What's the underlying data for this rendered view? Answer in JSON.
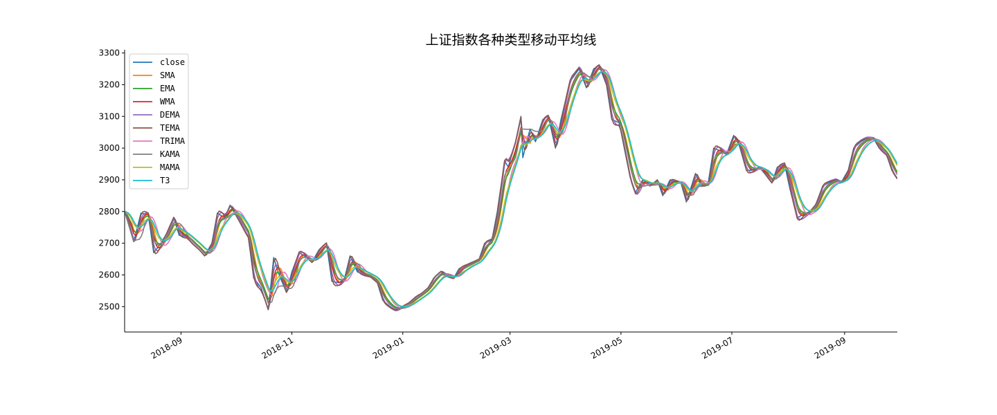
{
  "chart_data": {
    "type": "line",
    "title": "上证指数各种类型移动平均线",
    "xlabel": "",
    "ylabel": "",
    "x_range": [
      "2018-08-01",
      "2019-09-30"
    ],
    "ylim": [
      2420,
      3310
    ],
    "x_ticks": [
      "2018-09",
      "2018-11",
      "2019-01",
      "2019-03",
      "2019-05",
      "2019-07",
      "2019-09"
    ],
    "x_tick_dates": [
      "2018-09-01",
      "2018-11-01",
      "2019-01-01",
      "2019-03-01",
      "2019-05-01",
      "2019-07-01",
      "2019-09-01"
    ],
    "y_ticks": [
      2500,
      2600,
      2700,
      2800,
      2900,
      3000,
      3100,
      3200,
      3300
    ],
    "grid": false,
    "legend_position": "upper-left",
    "close_points": [
      [
        "2018-08-01",
        2800
      ],
      [
        "2018-08-06",
        2705
      ],
      [
        "2018-08-10",
        2795
      ],
      [
        "2018-08-14",
        2790
      ],
      [
        "2018-08-17",
        2670
      ],
      [
        "2018-08-21",
        2700
      ],
      [
        "2018-08-24",
        2730
      ],
      [
        "2018-08-28",
        2780
      ],
      [
        "2018-08-31",
        2725
      ],
      [
        "2018-09-04",
        2720
      ],
      [
        "2018-09-07",
        2700
      ],
      [
        "2018-09-11",
        2680
      ],
      [
        "2018-09-14",
        2660
      ],
      [
        "2018-09-18",
        2700
      ],
      [
        "2018-09-21",
        2795
      ],
      [
        "2018-09-25",
        2780
      ],
      [
        "2018-09-28",
        2820
      ],
      [
        "2018-10-08",
        2720
      ],
      [
        "2018-10-11",
        2590
      ],
      [
        "2018-10-15",
        2560
      ],
      [
        "2018-10-19",
        2490
      ],
      [
        "2018-10-22",
        2655
      ],
      [
        "2018-10-25",
        2600
      ],
      [
        "2018-10-29",
        2545
      ],
      [
        "2018-11-01",
        2610
      ],
      [
        "2018-11-05",
        2670
      ],
      [
        "2018-11-08",
        2660
      ],
      [
        "2018-11-12",
        2640
      ],
      [
        "2018-11-16",
        2680
      ],
      [
        "2018-11-20",
        2700
      ],
      [
        "2018-11-23",
        2580
      ],
      [
        "2018-11-27",
        2575
      ],
      [
        "2018-11-30",
        2590
      ],
      [
        "2018-12-03",
        2660
      ],
      [
        "2018-12-07",
        2610
      ],
      [
        "2018-12-11",
        2600
      ],
      [
        "2018-12-14",
        2595
      ],
      [
        "2018-12-18",
        2575
      ],
      [
        "2018-12-21",
        2520
      ],
      [
        "2018-12-25",
        2500
      ],
      [
        "2018-12-28",
        2490
      ],
      [
        "2019-01-04",
        2510
      ],
      [
        "2019-01-08",
        2530
      ],
      [
        "2019-01-11",
        2540
      ],
      [
        "2019-01-15",
        2560
      ],
      [
        "2019-01-18",
        2590
      ],
      [
        "2019-01-22",
        2610
      ],
      [
        "2019-01-25",
        2595
      ],
      [
        "2019-01-29",
        2590
      ],
      [
        "2019-02-01",
        2620
      ],
      [
        "2019-02-12",
        2650
      ],
      [
        "2019-02-15",
        2700
      ],
      [
        "2019-02-19",
        2710
      ],
      [
        "2019-02-22",
        2800
      ],
      [
        "2019-02-26",
        2960
      ],
      [
        "2019-02-28",
        2940
      ],
      [
        "2019-03-04",
        3020
      ],
      [
        "2019-03-07",
        3100
      ],
      [
        "2019-03-08",
        2970
      ],
      [
        "2019-03-12",
        3060
      ],
      [
        "2019-03-15",
        3020
      ],
      [
        "2019-03-19",
        3090
      ],
      [
        "2019-03-22",
        3100
      ],
      [
        "2019-03-26",
        3000
      ],
      [
        "2019-03-29",
        3090
      ],
      [
        "2019-04-03",
        3210
      ],
      [
        "2019-04-08",
        3250
      ],
      [
        "2019-04-12",
        3190
      ],
      [
        "2019-04-16",
        3250
      ],
      [
        "2019-04-19",
        3260
      ],
      [
        "2019-04-23",
        3200
      ],
      [
        "2019-04-26",
        3090
      ],
      [
        "2019-04-30",
        3080
      ],
      [
        "2019-05-06",
        2910
      ],
      [
        "2019-05-09",
        2860
      ],
      [
        "2019-05-13",
        2900
      ],
      [
        "2019-05-17",
        2880
      ],
      [
        "2019-05-21",
        2900
      ],
      [
        "2019-05-24",
        2850
      ],
      [
        "2019-05-28",
        2900
      ],
      [
        "2019-06-03",
        2890
      ],
      [
        "2019-06-06",
        2830
      ],
      [
        "2019-06-11",
        2920
      ],
      [
        "2019-06-14",
        2880
      ],
      [
        "2019-06-18",
        2890
      ],
      [
        "2019-06-21",
        3000
      ],
      [
        "2019-06-25",
        2990
      ],
      [
        "2019-06-28",
        2980
      ],
      [
        "2019-07-02",
        3040
      ],
      [
        "2019-07-05",
        3010
      ],
      [
        "2019-07-09",
        2930
      ],
      [
        "2019-07-12",
        2930
      ],
      [
        "2019-07-16",
        2940
      ],
      [
        "2019-07-19",
        2920
      ],
      [
        "2019-07-23",
        2890
      ],
      [
        "2019-07-26",
        2940
      ],
      [
        "2019-07-30",
        2950
      ],
      [
        "2019-08-02",
        2870
      ],
      [
        "2019-08-06",
        2780
      ],
      [
        "2019-08-09",
        2790
      ],
      [
        "2019-08-13",
        2800
      ],
      [
        "2019-08-16",
        2820
      ],
      [
        "2019-08-20",
        2880
      ],
      [
        "2019-08-23",
        2890
      ],
      [
        "2019-08-27",
        2900
      ],
      [
        "2019-08-30",
        2890
      ],
      [
        "2019-09-03",
        2930
      ],
      [
        "2019-09-06",
        3000
      ],
      [
        "2019-09-10",
        3020
      ],
      [
        "2019-09-13",
        3030
      ],
      [
        "2019-09-17",
        3030
      ],
      [
        "2019-09-20",
        3000
      ],
      [
        "2019-09-24",
        2980
      ],
      [
        "2019-09-27",
        2930
      ],
      [
        "2019-09-30",
        2905
      ]
    ],
    "series": [
      {
        "name": "close",
        "color": "#1f77b4",
        "method": "raw"
      },
      {
        "name": "SMA",
        "color": "#ff7f0e",
        "method": "sma",
        "period": 5
      },
      {
        "name": "EMA",
        "color": "#2ca02c",
        "method": "ema",
        "period": 5
      },
      {
        "name": "WMA",
        "color": "#d62728",
        "method": "wma",
        "period": 5
      },
      {
        "name": "DEMA",
        "color": "#9467bd",
        "method": "dema",
        "period": 5
      },
      {
        "name": "TEMA",
        "color": "#8c564b",
        "method": "tema",
        "period": 5
      },
      {
        "name": "TRIMA",
        "color": "#e377c2",
        "method": "trima",
        "period": 5
      },
      {
        "name": "KAMA",
        "color": "#7f7f7f",
        "method": "kama",
        "period": 6
      },
      {
        "name": "MAMA",
        "color": "#bcbd22",
        "method": "mama",
        "period": 7
      },
      {
        "name": "T3",
        "color": "#17becf",
        "method": "t3",
        "period": 4
      }
    ]
  }
}
